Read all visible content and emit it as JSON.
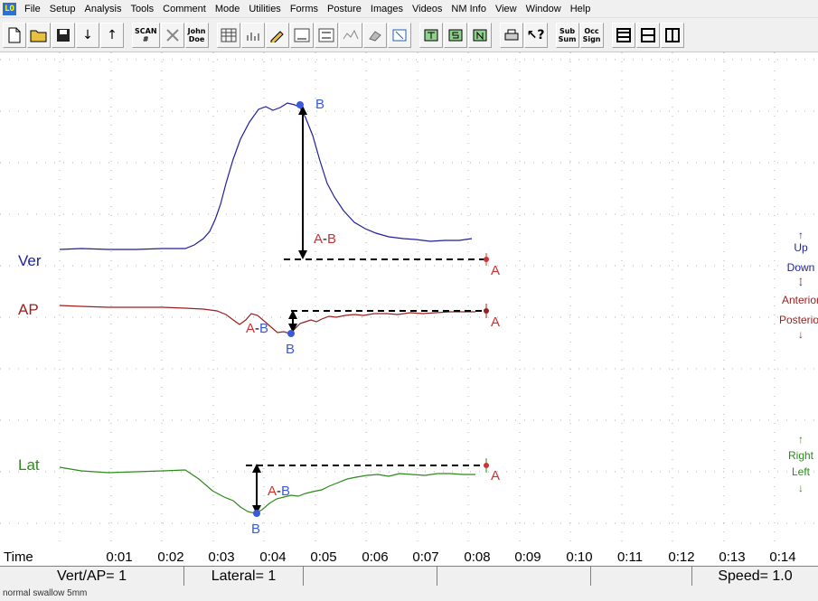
{
  "app_icon_text": "LO",
  "menu": [
    "File",
    "Setup",
    "Analysis",
    "Tools",
    "Comment",
    "Mode",
    "Utilities",
    "Forms",
    "Posture",
    "Images",
    "Videos",
    "NM Info",
    "View",
    "Window",
    "Help"
  ],
  "toolbar": {
    "scan_top": "SCAN",
    "scan_bottom": "#",
    "john_top": "John",
    "john_bottom": "Doe",
    "sub_top": "Sub",
    "sub_bottom": "Sum",
    "occ_top": "Occ",
    "occ_bottom": "Sign"
  },
  "channels": {
    "ver": {
      "label": "Ver",
      "color": "#1f1f9c",
      "up": "Up",
      "down": "Down"
    },
    "ap": {
      "label": "AP",
      "color": "#9c1f1f",
      "up": "Anterior",
      "down": "Posterior"
    },
    "lat": {
      "label": "Lat",
      "color": "#2d8a1a",
      "up": "Right",
      "down": "Left"
    }
  },
  "markers": {
    "a": "A",
    "b": "B",
    "a_minus_b_a": "A",
    "a_minus_b_dash": "-",
    "a_minus_b_b": "B"
  },
  "marker_colors": {
    "a": "#d03030",
    "b": "#3a5ad8"
  },
  "time_axis": {
    "label": "Time",
    "ticks": [
      "0:01",
      "0:02",
      "0:03",
      "0:04",
      "0:05",
      "0:06",
      "0:07",
      "0:08",
      "0:09",
      "0:10",
      "0:11",
      "0:12",
      "0:13",
      "0:14"
    ]
  },
  "status": {
    "vert_ap": "Vert/AP= 1",
    "lateral": "Lateral= 1",
    "speed": "Speed= 1.0"
  },
  "caption": "normal swallow 5mm"
}
